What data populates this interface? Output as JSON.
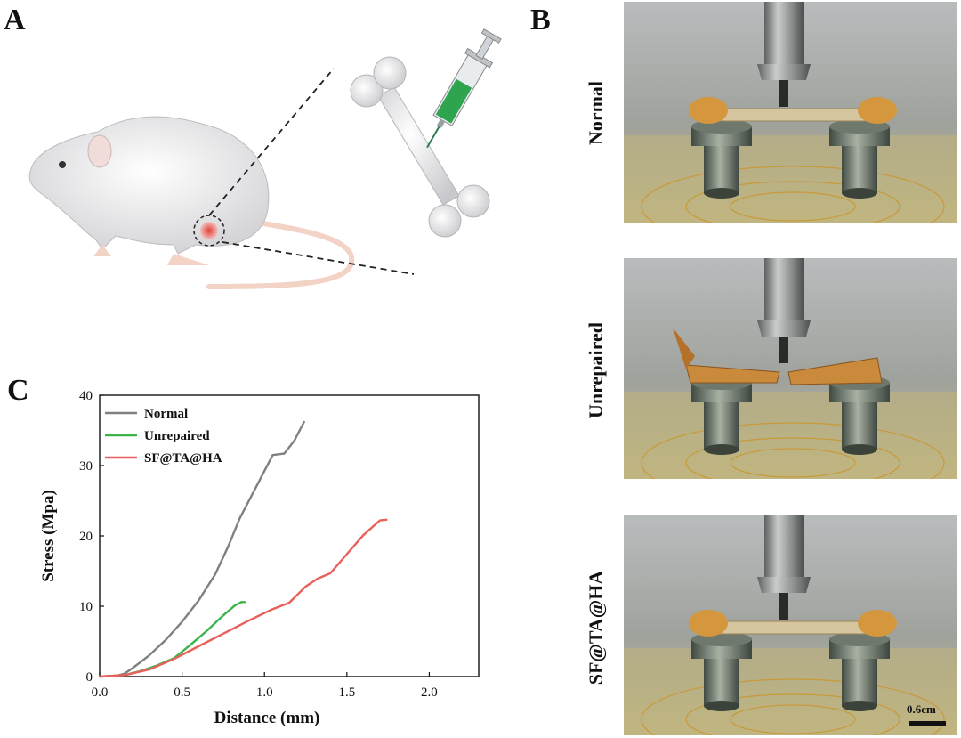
{
  "panels": {
    "a": "A",
    "b": "B",
    "c": "C"
  },
  "photos": {
    "rows": [
      "Normal",
      "Unrepaired",
      "SF@TA@HA"
    ],
    "scale_bar": "0.6cm"
  },
  "colors": {
    "normal": "#808080",
    "unrepaired": "#3cb44b",
    "sfta": "#e8605a"
  },
  "chart_data": {
    "type": "line",
    "xlabel": "Distance (mm)",
    "ylabel": "Stress (Mpa)",
    "xlim": [
      0,
      2.3
    ],
    "ylim": [
      0,
      40
    ],
    "xticks": [
      "0.0",
      "0.5",
      "1.0",
      "1.5",
      "2.0"
    ],
    "xtick_values": [
      0,
      0.5,
      1.0,
      1.5,
      2.0
    ],
    "yticks": [
      "0",
      "10",
      "20",
      "30",
      "40"
    ],
    "ytick_values": [
      0,
      10,
      20,
      30,
      40
    ],
    "legend_position": "top-left",
    "series": [
      {
        "name": "Normal",
        "color": "#808080",
        "x": [
          0,
          0.1,
          0.15,
          0.2,
          0.3,
          0.4,
          0.5,
          0.6,
          0.7,
          0.78,
          0.85,
          0.95,
          1.05,
          1.08,
          1.12,
          1.18,
          1.24
        ],
        "y": [
          0,
          0.1,
          0.4,
          1.2,
          3.0,
          5.2,
          7.8,
          10.8,
          14.5,
          18.5,
          22.5,
          27,
          31.5,
          31.6,
          31.7,
          33.5,
          36.2
        ]
      },
      {
        "name": "Unrepaired",
        "color": "#3cb44b",
        "x": [
          0,
          0.15,
          0.25,
          0.35,
          0.45,
          0.55,
          0.65,
          0.75,
          0.82,
          0.86,
          0.88
        ],
        "y": [
          0,
          0.2,
          0.8,
          1.6,
          2.6,
          4.5,
          6.5,
          8.7,
          10.1,
          10.6,
          10.6
        ]
      },
      {
        "name": "SF@TA@HA",
        "color": "#e8605a",
        "x": [
          0,
          0.15,
          0.3,
          0.45,
          0.6,
          0.75,
          0.9,
          1.05,
          1.15,
          1.25,
          1.32,
          1.4,
          1.5,
          1.6,
          1.7,
          1.74
        ],
        "y": [
          0,
          0.2,
          1.0,
          2.5,
          4.3,
          6.1,
          7.9,
          9.6,
          10.5,
          12.8,
          13.9,
          14.7,
          17.4,
          20.1,
          22.2,
          22.3
        ]
      }
    ]
  }
}
